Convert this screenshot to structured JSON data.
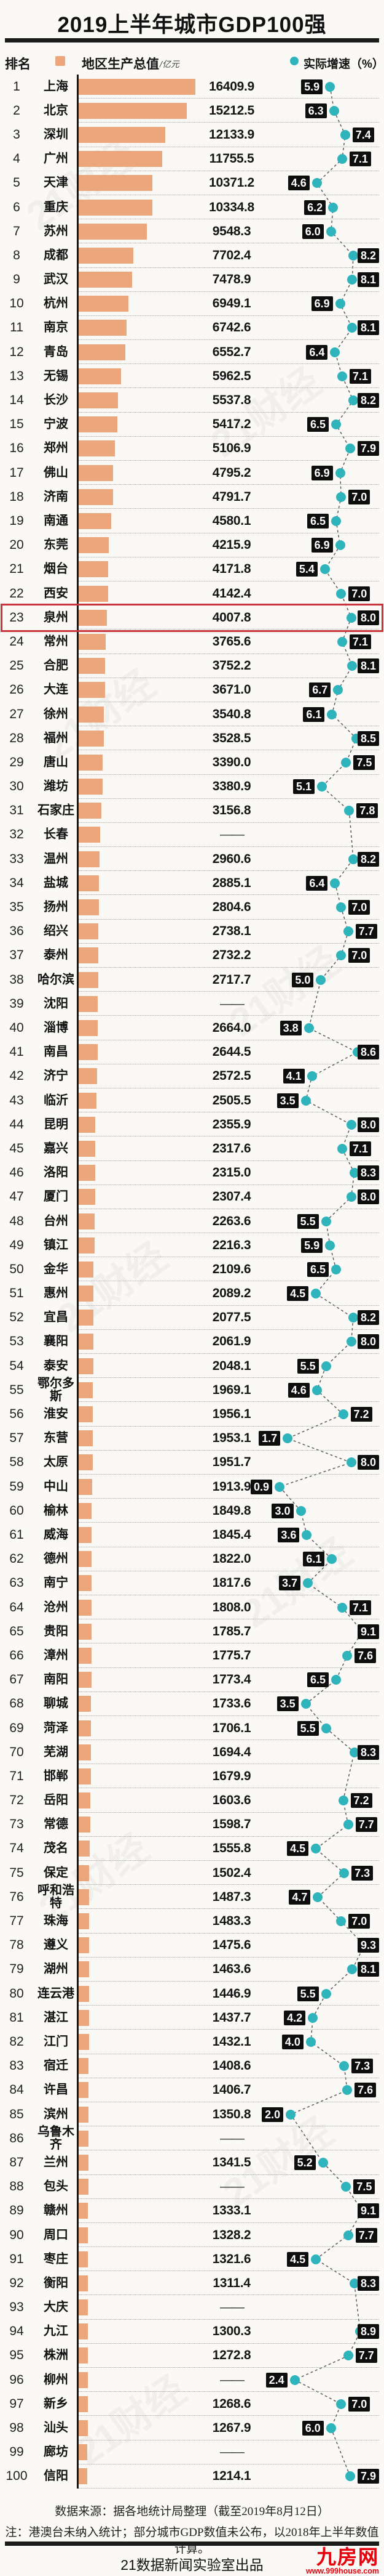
{
  "title": "2019上半年城市GDP100强",
  "legend": {
    "rank": "排名",
    "gdp": "地区生产总值",
    "gdp_unit": "/亿元",
    "growth": "实际增速（%）"
  },
  "colors": {
    "bar": "#EBA67C",
    "dot": "#2FB4BC",
    "badge_bg": "#0E0E0E",
    "highlight_box": "#C9353B",
    "logo_red": "#E8000D"
  },
  "watermark": "21财经",
  "highlight": {
    "rank": 23
  },
  "footer": {
    "source": "数据来源：据各地统计局整理（截至2019年8月12日）",
    "note": "注：港澳台未纳入统计；部分城市GDP数值未公布，以2018年上半年数值计算。",
    "producer": "21数据新闻实验室出品",
    "logo_text": "九房网",
    "logo_url_text": "www.999house.com"
  },
  "chart_data": {
    "type": "bar",
    "title": "2019上半年城市GDP100强",
    "value_label": "地区生产总值(亿元)",
    "growth_label": "实际增速(%)",
    "bar_scale_max": 16409.9,
    "growth_axis_range": [
      0.9,
      9.3
    ],
    "missing_label": "——",
    "rows": [
      {
        "rank": 1,
        "city": "上海",
        "gdp": 16409.9,
        "growth": 5.9
      },
      {
        "rank": 2,
        "city": "北京",
        "gdp": 15212.5,
        "growth": 6.3
      },
      {
        "rank": 3,
        "city": "深圳",
        "gdp": 12133.9,
        "growth": 7.4
      },
      {
        "rank": 4,
        "city": "广州",
        "gdp": 11755.5,
        "growth": 7.1
      },
      {
        "rank": 5,
        "city": "天津",
        "gdp": 10371.2,
        "growth": 4.6
      },
      {
        "rank": 6,
        "city": "重庆",
        "gdp": 10334.8,
        "growth": 6.2
      },
      {
        "rank": 7,
        "city": "苏州",
        "gdp": 9548.3,
        "growth": 6.0
      },
      {
        "rank": 8,
        "city": "成都",
        "gdp": 7702.4,
        "growth": 8.2
      },
      {
        "rank": 9,
        "city": "武汉",
        "gdp": 7478.9,
        "growth": 8.1
      },
      {
        "rank": 10,
        "city": "杭州",
        "gdp": 6949.1,
        "growth": 6.9
      },
      {
        "rank": 11,
        "city": "南京",
        "gdp": 6742.6,
        "growth": 8.1
      },
      {
        "rank": 12,
        "city": "青岛",
        "gdp": 6552.7,
        "growth": 6.4
      },
      {
        "rank": 13,
        "city": "无锡",
        "gdp": 5962.5,
        "growth": 7.1
      },
      {
        "rank": 14,
        "city": "长沙",
        "gdp": 5537.8,
        "growth": 8.2
      },
      {
        "rank": 15,
        "city": "宁波",
        "gdp": 5417.2,
        "growth": 6.5
      },
      {
        "rank": 16,
        "city": "郑州",
        "gdp": 5106.9,
        "growth": 7.9
      },
      {
        "rank": 17,
        "city": "佛山",
        "gdp": 4795.2,
        "growth": 6.9
      },
      {
        "rank": 18,
        "city": "济南",
        "gdp": 4791.7,
        "growth": 7.0
      },
      {
        "rank": 19,
        "city": "南通",
        "gdp": 4580.1,
        "growth": 6.5
      },
      {
        "rank": 20,
        "city": "东莞",
        "gdp": 4215.9,
        "growth": 6.9
      },
      {
        "rank": 21,
        "city": "烟台",
        "gdp": 4171.8,
        "growth": 5.4
      },
      {
        "rank": 22,
        "city": "西安",
        "gdp": 4142.4,
        "growth": 7.0
      },
      {
        "rank": 23,
        "city": "泉州",
        "gdp": 4007.8,
        "growth": 8.0
      },
      {
        "rank": 24,
        "city": "常州",
        "gdp": 3765.6,
        "growth": 7.1
      },
      {
        "rank": 25,
        "city": "合肥",
        "gdp": 3752.2,
        "growth": 8.1
      },
      {
        "rank": 26,
        "city": "大连",
        "gdp": 3671.0,
        "growth": 6.7
      },
      {
        "rank": 27,
        "city": "徐州",
        "gdp": 3540.8,
        "growth": 6.1
      },
      {
        "rank": 28,
        "city": "福州",
        "gdp": 3528.5,
        "growth": 8.5
      },
      {
        "rank": 29,
        "city": "唐山",
        "gdp": 3390.0,
        "growth": 7.5
      },
      {
        "rank": 30,
        "city": "潍坊",
        "gdp": 3380.9,
        "growth": 5.1
      },
      {
        "rank": 31,
        "city": "石家庄",
        "gdp": 3156.8,
        "growth": 7.8
      },
      {
        "rank": 32,
        "city": "长春",
        "gdp": null,
        "growth": null
      },
      {
        "rank": 33,
        "city": "温州",
        "gdp": 2960.6,
        "growth": 8.2
      },
      {
        "rank": 34,
        "city": "盐城",
        "gdp": 2885.1,
        "growth": 6.4
      },
      {
        "rank": 35,
        "city": "扬州",
        "gdp": 2804.6,
        "growth": 7.0
      },
      {
        "rank": 36,
        "city": "绍兴",
        "gdp": 2738.1,
        "growth": 7.7
      },
      {
        "rank": 37,
        "city": "泰州",
        "gdp": 2732.2,
        "growth": 7.0
      },
      {
        "rank": 38,
        "city": "哈尔滨",
        "gdp": 2717.7,
        "growth": 5.0
      },
      {
        "rank": 39,
        "city": "沈阳",
        "gdp": null,
        "growth": null
      },
      {
        "rank": 40,
        "city": "淄博",
        "gdp": 2664.0,
        "growth": 3.8
      },
      {
        "rank": 41,
        "city": "南昌",
        "gdp": 2644.5,
        "growth": 8.6
      },
      {
        "rank": 42,
        "city": "济宁",
        "gdp": 2572.5,
        "growth": 4.1
      },
      {
        "rank": 43,
        "city": "临沂",
        "gdp": 2505.5,
        "growth": 3.5
      },
      {
        "rank": 44,
        "city": "昆明",
        "gdp": 2355.9,
        "growth": 8.0
      },
      {
        "rank": 45,
        "city": "嘉兴",
        "gdp": 2317.6,
        "growth": 7.1
      },
      {
        "rank": 46,
        "city": "洛阳",
        "gdp": 2315.0,
        "growth": 8.3
      },
      {
        "rank": 47,
        "city": "厦门",
        "gdp": 2307.4,
        "growth": 8.0
      },
      {
        "rank": 48,
        "city": "台州",
        "gdp": 2263.6,
        "growth": 5.5
      },
      {
        "rank": 49,
        "city": "镇江",
        "gdp": 2216.3,
        "growth": 5.9
      },
      {
        "rank": 50,
        "city": "金华",
        "gdp": 2109.6,
        "growth": 6.5
      },
      {
        "rank": 51,
        "city": "惠州",
        "gdp": 2089.2,
        "growth": 4.5
      },
      {
        "rank": 52,
        "city": "宜昌",
        "gdp": 2077.5,
        "growth": 8.2
      },
      {
        "rank": 53,
        "city": "襄阳",
        "gdp": 2061.9,
        "growth": 8.0
      },
      {
        "rank": 54,
        "city": "泰安",
        "gdp": 2048.1,
        "growth": 5.5
      },
      {
        "rank": 55,
        "city": "鄂尔多斯",
        "gdp": 1969.1,
        "growth": 4.6
      },
      {
        "rank": 56,
        "city": "淮安",
        "gdp": 1956.1,
        "growth": 7.2
      },
      {
        "rank": 57,
        "city": "东营",
        "gdp": 1953.1,
        "growth": 1.7
      },
      {
        "rank": 58,
        "city": "太原",
        "gdp": 1951.7,
        "growth": 8.0
      },
      {
        "rank": 59,
        "city": "中山",
        "gdp": 1913.9,
        "growth": 0.9
      },
      {
        "rank": 60,
        "city": "榆林",
        "gdp": 1849.8,
        "growth": 3.0
      },
      {
        "rank": 61,
        "city": "威海",
        "gdp": 1845.4,
        "growth": 3.6
      },
      {
        "rank": 62,
        "city": "德州",
        "gdp": 1822.0,
        "growth": 6.1
      },
      {
        "rank": 63,
        "city": "南宁",
        "gdp": 1817.6,
        "growth": 3.7
      },
      {
        "rank": 64,
        "city": "沧州",
        "gdp": 1808.0,
        "growth": 7.1
      },
      {
        "rank": 65,
        "city": "贵阳",
        "gdp": 1785.7,
        "growth": 9.1
      },
      {
        "rank": 66,
        "city": "漳州",
        "gdp": 1775.7,
        "growth": 7.6
      },
      {
        "rank": 67,
        "city": "南阳",
        "gdp": 1773.4,
        "growth": 6.5
      },
      {
        "rank": 68,
        "city": "聊城",
        "gdp": 1733.6,
        "growth": 3.5
      },
      {
        "rank": 69,
        "city": "菏泽",
        "gdp": 1706.1,
        "growth": 5.5
      },
      {
        "rank": 70,
        "city": "芜湖",
        "gdp": 1694.4,
        "growth": 8.3
      },
      {
        "rank": 71,
        "city": "邯郸",
        "gdp": 1679.9,
        "growth": null
      },
      {
        "rank": 72,
        "city": "岳阳",
        "gdp": 1603.6,
        "growth": 7.2
      },
      {
        "rank": 73,
        "city": "常德",
        "gdp": 1598.7,
        "growth": 7.7
      },
      {
        "rank": 74,
        "city": "茂名",
        "gdp": 1555.8,
        "growth": 4.5
      },
      {
        "rank": 75,
        "city": "保定",
        "gdp": 1502.4,
        "growth": 7.3
      },
      {
        "rank": 76,
        "city": "呼和浩特",
        "gdp": 1487.3,
        "growth": 4.7
      },
      {
        "rank": 77,
        "city": "珠海",
        "gdp": 1483.3,
        "growth": 7.0
      },
      {
        "rank": 78,
        "city": "遵义",
        "gdp": 1475.6,
        "growth": 9.3
      },
      {
        "rank": 79,
        "city": "湖州",
        "gdp": 1463.6,
        "growth": 8.1
      },
      {
        "rank": 80,
        "city": "连云港",
        "gdp": 1446.9,
        "growth": 5.5
      },
      {
        "rank": 81,
        "city": "湛江",
        "gdp": 1437.7,
        "growth": 4.2
      },
      {
        "rank": 82,
        "city": "江门",
        "gdp": 1432.1,
        "growth": 4.0
      },
      {
        "rank": 83,
        "city": "宿迁",
        "gdp": 1408.6,
        "growth": 7.3
      },
      {
        "rank": 84,
        "city": "许昌",
        "gdp": 1406.7,
        "growth": 7.6
      },
      {
        "rank": 85,
        "city": "滨州",
        "gdp": 1350.8,
        "growth": 2.0
      },
      {
        "rank": 86,
        "city": "乌鲁木齐",
        "gdp": null,
        "growth": null
      },
      {
        "rank": 87,
        "city": "兰州",
        "gdp": 1341.5,
        "growth": 5.2
      },
      {
        "rank": 88,
        "city": "包头",
        "gdp": null,
        "growth": 7.5
      },
      {
        "rank": 89,
        "city": "赣州",
        "gdp": 1333.1,
        "growth": 9.1
      },
      {
        "rank": 90,
        "city": "周口",
        "gdp": 1328.2,
        "growth": 7.7
      },
      {
        "rank": 91,
        "city": "枣庄",
        "gdp": 1321.6,
        "growth": 4.5
      },
      {
        "rank": 92,
        "city": "衡阳",
        "gdp": 1311.4,
        "growth": 8.3
      },
      {
        "rank": 93,
        "city": "大庆",
        "gdp": null,
        "growth": null
      },
      {
        "rank": 94,
        "city": "九江",
        "gdp": 1300.3,
        "growth": 8.9
      },
      {
        "rank": 95,
        "city": "株洲",
        "gdp": 1272.8,
        "growth": 7.7
      },
      {
        "rank": 96,
        "city": "柳州",
        "gdp": null,
        "growth": 2.4
      },
      {
        "rank": 97,
        "city": "新乡",
        "gdp": 1268.6,
        "growth": 7.0
      },
      {
        "rank": 98,
        "city": "汕头",
        "gdp": 1267.9,
        "growth": 6.0
      },
      {
        "rank": 99,
        "city": "廊坊",
        "gdp": null,
        "growth": null
      },
      {
        "rank": 100,
        "city": "信阳",
        "gdp": 1214.1,
        "growth": 7.9
      }
    ]
  }
}
